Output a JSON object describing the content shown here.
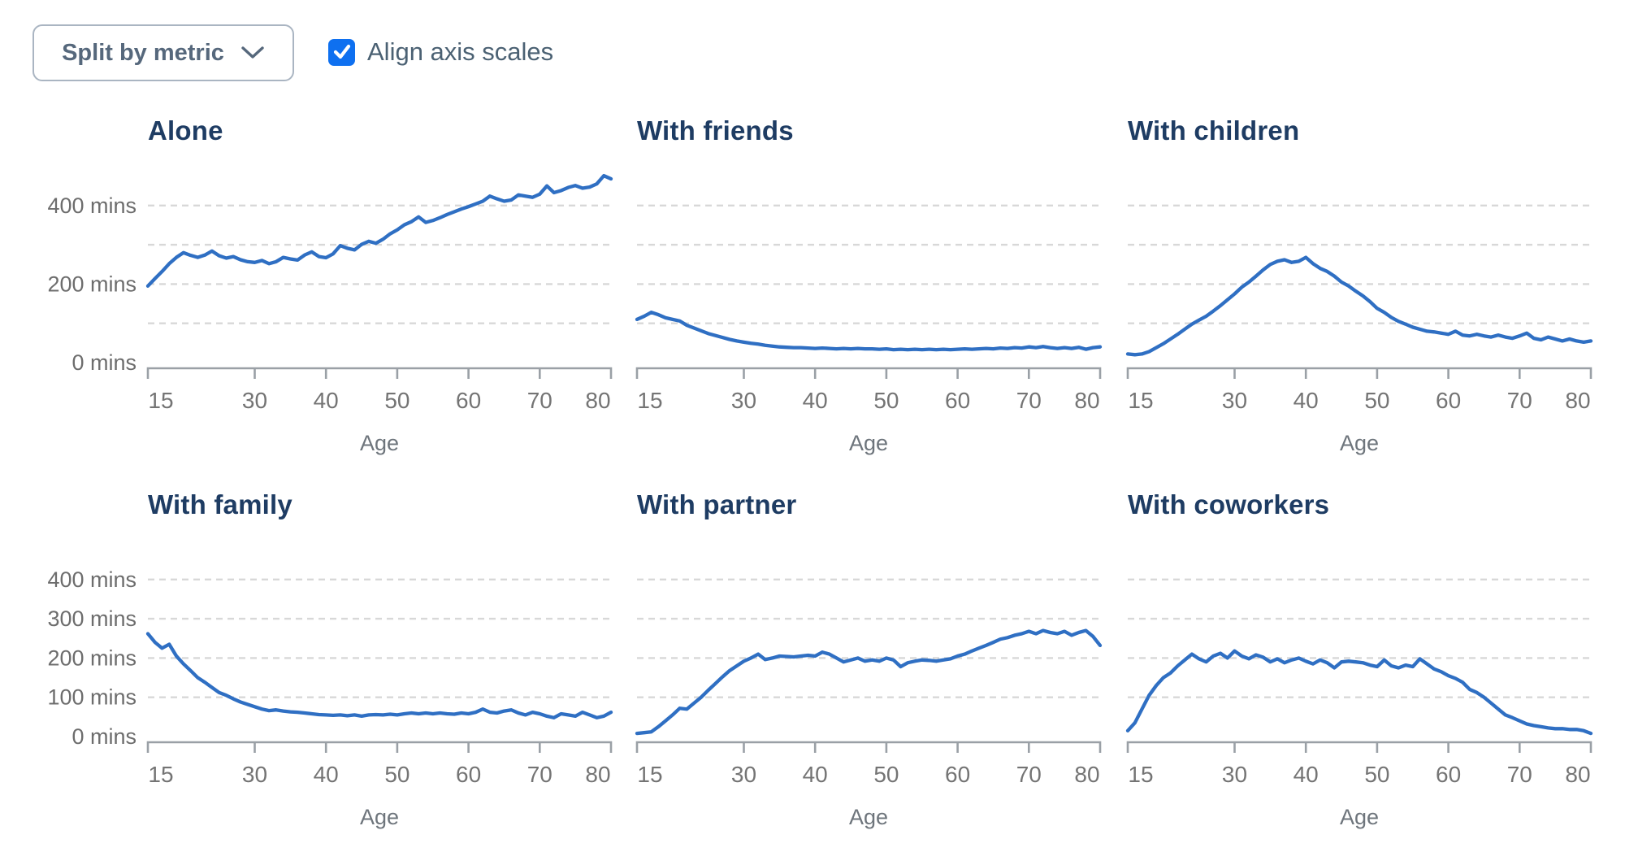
{
  "controls": {
    "split_button_label": "Split by metric",
    "align_checkbox_label": "Align axis scales",
    "align_checkbox_checked": true
  },
  "style": {
    "line_color": "#2f6fc3",
    "title_color": "#1e3c63",
    "checkbox_blue": "#0e70f0",
    "gridline_color": "#d8d8d8",
    "axis_color": "#9aa0a6",
    "label_gray": "#747474"
  },
  "chart_data": [
    {
      "type": "line",
      "title": "Alone",
      "xlabel": "Age",
      "x": {
        "start": 15,
        "end": 80,
        "step": 1
      },
      "x_ticks": [
        15,
        30,
        40,
        50,
        60,
        70,
        80
      ],
      "y_range": [
        0,
        480
      ],
      "y_gridlines": [
        100,
        200,
        300,
        400
      ],
      "y_axis_labels": [
        {
          "value": 400,
          "text": "400 mins"
        },
        {
          "value": 200,
          "text": "200 mins"
        },
        {
          "value": 0,
          "text": "0 mins"
        }
      ],
      "values": [
        195,
        214,
        232,
        252,
        268,
        280,
        273,
        268,
        274,
        284,
        272,
        266,
        270,
        262,
        257,
        255,
        260,
        252,
        257,
        268,
        264,
        261,
        274,
        282,
        270,
        267,
        277,
        298,
        291,
        287,
        301,
        309,
        304,
        314,
        328,
        338,
        351,
        359,
        371,
        357,
        362,
        369,
        377,
        384,
        391,
        397,
        404,
        411,
        424,
        417,
        411,
        414,
        427,
        424,
        421,
        429,
        450,
        433,
        438,
        446,
        451,
        444,
        447,
        455,
        476,
        468
      ]
    },
    {
      "type": "line",
      "title": "With friends",
      "xlabel": "Age",
      "x": {
        "start": 15,
        "end": 80,
        "step": 1
      },
      "x_ticks": [
        15,
        30,
        40,
        50,
        60,
        70,
        80
      ],
      "y_range": [
        0,
        480
      ],
      "y_gridlines": [
        100,
        200,
        300,
        400
      ],
      "y_axis_labels": [],
      "values": [
        110,
        118,
        128,
        122,
        114,
        110,
        106,
        95,
        88,
        81,
        74,
        69,
        64,
        59,
        55,
        52,
        49,
        47,
        44,
        42,
        40,
        39,
        38,
        38,
        37,
        36,
        37,
        36,
        35,
        36,
        35,
        36,
        35,
        35,
        34,
        35,
        33,
        34,
        33,
        34,
        33,
        34,
        33,
        34,
        33,
        34,
        35,
        34,
        35,
        36,
        35,
        37,
        36,
        38,
        37,
        40,
        38,
        41,
        38,
        36,
        38,
        36,
        39,
        34,
        38,
        40
      ]
    },
    {
      "type": "line",
      "title": "With children",
      "xlabel": "Age",
      "x": {
        "start": 15,
        "end": 80,
        "step": 1
      },
      "x_ticks": [
        15,
        30,
        40,
        50,
        60,
        70,
        80
      ],
      "y_range": [
        0,
        480
      ],
      "y_gridlines": [
        100,
        200,
        300,
        400
      ],
      "y_axis_labels": [],
      "values": [
        22,
        20,
        22,
        28,
        38,
        48,
        60,
        72,
        85,
        98,
        108,
        118,
        131,
        145,
        160,
        175,
        192,
        205,
        220,
        236,
        250,
        258,
        262,
        255,
        258,
        268,
        252,
        240,
        232,
        220,
        205,
        195,
        182,
        170,
        155,
        138,
        128,
        115,
        105,
        98,
        90,
        85,
        80,
        78,
        75,
        72,
        80,
        70,
        68,
        72,
        68,
        65,
        70,
        65,
        62,
        68,
        75,
        62,
        58,
        65,
        60,
        55,
        60,
        55,
        52,
        55
      ]
    },
    {
      "type": "line",
      "title": "With family",
      "xlabel": "Age",
      "x": {
        "start": 15,
        "end": 80,
        "step": 1
      },
      "x_ticks": [
        15,
        30,
        40,
        50,
        60,
        70,
        80
      ],
      "y_range": [
        0,
        480
      ],
      "y_gridlines": [
        100,
        200,
        300,
        400
      ],
      "y_axis_labels": [
        {
          "value": 400,
          "text": "400 mins"
        },
        {
          "value": 300,
          "text": "300 mins"
        },
        {
          "value": 200,
          "text": "200 mins"
        },
        {
          "value": 100,
          "text": "100 mins"
        },
        {
          "value": 0,
          "text": "0 mins"
        }
      ],
      "values": [
        262,
        240,
        225,
        235,
        205,
        185,
        168,
        150,
        138,
        125,
        112,
        105,
        96,
        88,
        82,
        76,
        70,
        66,
        68,
        65,
        63,
        62,
        60,
        58,
        56,
        55,
        54,
        55,
        53,
        55,
        52,
        55,
        56,
        55,
        57,
        55,
        58,
        60,
        58,
        60,
        58,
        60,
        58,
        57,
        60,
        58,
        62,
        70,
        62,
        60,
        65,
        68,
        60,
        55,
        62,
        58,
        52,
        48,
        58,
        55,
        52,
        62,
        55,
        48,
        52,
        62
      ]
    },
    {
      "type": "line",
      "title": "With partner",
      "xlabel": "Age",
      "x": {
        "start": 15,
        "end": 80,
        "step": 1
      },
      "x_ticks": [
        15,
        30,
        40,
        50,
        60,
        70,
        80
      ],
      "y_range": [
        0,
        480
      ],
      "y_gridlines": [
        100,
        200,
        300,
        400
      ],
      "y_axis_labels": [],
      "values": [
        8,
        10,
        12,
        25,
        40,
        55,
        72,
        70,
        85,
        100,
        118,
        135,
        152,
        168,
        180,
        192,
        200,
        210,
        196,
        200,
        205,
        204,
        203,
        205,
        207,
        205,
        215,
        210,
        200,
        190,
        195,
        200,
        192,
        195,
        192,
        200,
        195,
        178,
        188,
        192,
        195,
        194,
        192,
        195,
        198,
        205,
        210,
        218,
        225,
        232,
        240,
        248,
        252,
        258,
        262,
        268,
        262,
        270,
        265,
        262,
        268,
        258,
        265,
        270,
        255,
        232
      ]
    },
    {
      "type": "line",
      "title": "With coworkers",
      "xlabel": "Age",
      "x": {
        "start": 15,
        "end": 80,
        "step": 1
      },
      "x_ticks": [
        15,
        30,
        40,
        50,
        60,
        70,
        80
      ],
      "y_range": [
        0,
        480
      ],
      "y_gridlines": [
        100,
        200,
        300,
        400
      ],
      "y_axis_labels": [],
      "values": [
        15,
        35,
        70,
        105,
        130,
        150,
        162,
        180,
        195,
        210,
        198,
        190,
        205,
        212,
        200,
        218,
        205,
        198,
        208,
        202,
        190,
        198,
        188,
        195,
        200,
        192,
        185,
        195,
        188,
        175,
        190,
        192,
        190,
        188,
        182,
        178,
        195,
        180,
        175,
        182,
        178,
        198,
        185,
        172,
        165,
        155,
        148,
        138,
        120,
        112,
        100,
        85,
        70,
        55,
        48,
        40,
        32,
        28,
        25,
        22,
        20,
        20,
        18,
        18,
        15,
        8
      ]
    }
  ]
}
